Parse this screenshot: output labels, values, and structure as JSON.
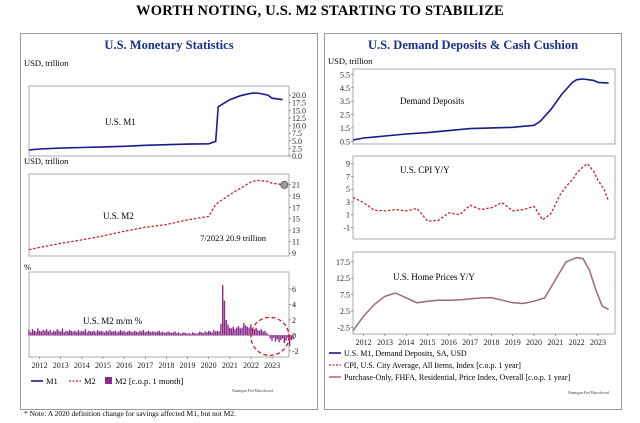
{
  "title": "WORTH NOTING, U.S. M2 STARTING TO STABILIZE",
  "footnote": "* Note: A 2020 definition change for savings affected M1, but not M2.",
  "source_tag": "Bannigan Fed Macroboard",
  "colors": {
    "navy": "#1a1a8c",
    "red": "#c0272d",
    "purple": "#8a2a8a",
    "brown": "#9b6a7a",
    "title_blue": "#1a2f8f"
  },
  "left_panel": {
    "title": "U.S. Monetary Statistics",
    "legend": {
      "m1": "M1",
      "m2": "M2",
      "m2_mom": "M2 [c.o.p. 1 month]"
    }
  },
  "right_panel": {
    "title": "U.S. Demand Deposits & Cash Cushion",
    "legend": [
      "U.S. M1, Demand Deposits, SA, USD",
      "CPI, U.S. City Average, All Items, Index [c.o.p. 1 year]",
      "Purchase-Only, FHFA, Residential, Price Index, Overall [c.o.p. 1 year]"
    ]
  },
  "chart_data": [
    {
      "type": "line",
      "id": "m1",
      "unit_label": "USD, trillion",
      "label": "U.S. M1",
      "x": [
        2011.5,
        2012,
        2013,
        2014,
        2015,
        2016,
        2017,
        2018,
        2019,
        2020.0,
        2020.33,
        2020.45,
        2021.0,
        2021.5,
        2022.0,
        2022.3,
        2022.8,
        2023.0,
        2023.5
      ],
      "values": [
        2.0,
        2.3,
        2.6,
        2.8,
        3.0,
        3.2,
        3.5,
        3.7,
        3.9,
        4.0,
        4.8,
        16.2,
        18.5,
        19.8,
        20.6,
        20.7,
        20.0,
        19.0,
        18.5
      ],
      "ylim": [
        0,
        23
      ],
      "yticks": [
        0.0,
        2.5,
        5.0,
        7.5,
        10.0,
        12.5,
        15.0,
        17.5,
        20.0
      ],
      "ytick_labels": [
        "0.0",
        "2.5",
        "5.0",
        "7.5",
        "10.0",
        "12.5",
        "15.0",
        "17.5",
        "20.0"
      ]
    },
    {
      "type": "line",
      "id": "m2",
      "unit_label": "USD, trillion",
      "label": "U.S. M2",
      "annotation": "7/2023 20.9 trillion",
      "x": [
        2011.5,
        2012,
        2013,
        2014,
        2015,
        2016,
        2017,
        2018,
        2019,
        2020.0,
        2020.33,
        2020.6,
        2021.0,
        2021.5,
        2022.0,
        2022.3,
        2022.8,
        2023.0,
        2023.58
      ],
      "values": [
        9.6,
        10.0,
        10.7,
        11.3,
        12.0,
        12.8,
        13.5,
        14.0,
        14.8,
        15.4,
        17.5,
        18.2,
        19.2,
        20.3,
        21.4,
        21.7,
        21.5,
        21.2,
        20.9
      ],
      "ylim": [
        8.5,
        22.8
      ],
      "yticks": [
        9,
        11,
        13,
        15,
        17,
        19,
        21
      ],
      "ytick_labels": [
        "9",
        "11",
        "13",
        "15",
        "17",
        "19",
        "21"
      ]
    },
    {
      "type": "bar",
      "id": "m2_mom",
      "unit_label": "%",
      "label": "U.S. M2 m/m %",
      "x_start": 2011.5,
      "step": 0.0833,
      "values": [
        0.7,
        0.4,
        0.8,
        0.6,
        0.5,
        0.9,
        0.6,
        0.5,
        0.7,
        0.6,
        0.8,
        0.5,
        0.7,
        0.4,
        0.6,
        0.5,
        0.8,
        0.6,
        0.5,
        0.9,
        0.4,
        0.6,
        0.5,
        0.7,
        0.6,
        0.5,
        0.6,
        0.4,
        0.7,
        0.5,
        0.6,
        0.5,
        0.8,
        0.4,
        0.6,
        0.5,
        0.5,
        0.6,
        0.4,
        0.7,
        0.5,
        0.6,
        0.5,
        0.4,
        0.6,
        0.5,
        0.7,
        0.5,
        0.5,
        0.6,
        0.4,
        0.5,
        0.7,
        0.5,
        0.6,
        0.4,
        0.5,
        0.6,
        0.5,
        0.4,
        0.6,
        0.5,
        0.4,
        0.6,
        0.5,
        0.7,
        0.4,
        0.5,
        0.6,
        0.4,
        0.5,
        0.5,
        0.4,
        0.5,
        0.6,
        0.4,
        0.5,
        0.3,
        0.4,
        0.5,
        0.4,
        0.3,
        0.4,
        0.5,
        0.3,
        0.4,
        0.2,
        0.3,
        0.4,
        0.3,
        0.2,
        0.3,
        0.2,
        0.4,
        0.3,
        0.2,
        0.3,
        0.5,
        0.4,
        0.3,
        0.5,
        0.4,
        0.6,
        0.5,
        0.4,
        0.7,
        0.5,
        0.6,
        0.5,
        1.5,
        6.5,
        4.5,
        2.0,
        1.4,
        1.0,
        0.9,
        1.1,
        0.8,
        1.0,
        1.2,
        0.9,
        1.0,
        1.6,
        1.3,
        1.1,
        1.0,
        1.4,
        0.9,
        0.8,
        1.0,
        0.7,
        0.6,
        0.8,
        0.5,
        0.6,
        0.3,
        0.1,
        -0.4,
        -0.7,
        -0.3,
        -0.8,
        -0.5,
        -0.9,
        -0.6,
        -0.4,
        -1.0,
        -0.7,
        -0.3,
        -1.4,
        -0.6,
        -0.5,
        0.2
      ],
      "ylim": [
        -2.8,
        8.2
      ],
      "yticks": [
        -2,
        0,
        2,
        4,
        6
      ],
      "ytick_labels": [
        "-2",
        "0",
        "2",
        "4",
        "6"
      ],
      "highlight_circle": "2022–2023"
    },
    {
      "type": "line",
      "id": "demand_deposits",
      "unit_label": "USD, trillion",
      "label": "Demand Deposits",
      "x": [
        2011.5,
        2012,
        2013,
        2014,
        2015,
        2016,
        2017,
        2018,
        2019,
        2020.0,
        2020.3,
        2020.8,
        2021.3,
        2021.8,
        2022.0,
        2022.3,
        2022.8,
        2023.0,
        2023.5
      ],
      "values": [
        0.6,
        0.75,
        0.9,
        1.05,
        1.15,
        1.3,
        1.45,
        1.5,
        1.55,
        1.7,
        2.0,
        2.9,
        4.0,
        4.9,
        5.1,
        5.15,
        5.05,
        4.9,
        4.85
      ],
      "ylim": [
        0.3,
        5.9
      ],
      "yticks": [
        0.5,
        1.5,
        2.5,
        3.5,
        4.5,
        5.5
      ],
      "ytick_labels": [
        "0.5",
        "1.5",
        "2.5",
        "3.5",
        "4.5",
        "5.5"
      ]
    },
    {
      "type": "line",
      "id": "cpi",
      "label": "U.S. CPI Y/Y",
      "x": [
        2011.5,
        2012,
        2012.5,
        2013,
        2013.5,
        2014,
        2014.5,
        2015,
        2015.5,
        2016,
        2016.5,
        2017,
        2017.5,
        2018,
        2018.5,
        2019,
        2019.5,
        2020,
        2020.4,
        2020.8,
        2021.2,
        2021.5,
        2021.8,
        2022.0,
        2022.3,
        2022.5,
        2022.8,
        2023.0,
        2023.3,
        2023.5
      ],
      "values": [
        3.7,
        2.9,
        1.7,
        1.6,
        1.8,
        1.6,
        2.0,
        0.0,
        0.1,
        1.3,
        1.0,
        2.5,
        1.8,
        2.1,
        2.9,
        1.6,
        1.8,
        2.3,
        0.2,
        1.2,
        4.0,
        5.4,
        6.5,
        7.5,
        8.5,
        9.0,
        7.8,
        6.4,
        4.9,
        3.1
      ],
      "ylim": [
        -2.8,
        10.2
      ],
      "yticks": [
        -1,
        1,
        3,
        5,
        7,
        9
      ],
      "ytick_labels": [
        "-1",
        "1",
        "3",
        "5",
        "7",
        "9"
      ]
    },
    {
      "type": "line",
      "id": "home_prices",
      "label": "U.S. Home Prices Y/Y",
      "x": [
        2011.5,
        2012,
        2012.5,
        2013,
        2013.5,
        2014,
        2014.5,
        2015,
        2015.5,
        2016,
        2016.5,
        2017,
        2017.5,
        2018,
        2018.5,
        2019,
        2019.5,
        2020,
        2020.5,
        2021,
        2021.5,
        2022,
        2022.3,
        2022.6,
        2022.9,
        2023.2,
        2023.5
      ],
      "values": [
        -3.5,
        1.0,
        4.5,
        7.0,
        8.0,
        6.5,
        5.0,
        5.5,
        5.8,
        5.8,
        5.9,
        6.2,
        6.5,
        6.6,
        5.8,
        5.0,
        4.8,
        5.5,
        6.5,
        12.0,
        17.5,
        18.8,
        18.5,
        15.0,
        9.0,
        4.0,
        3.0
      ],
      "ylim": [
        -4.5,
        20.5
      ],
      "yticks": [
        -2.5,
        2.5,
        7.5,
        12.5,
        17.5
      ],
      "ytick_labels": [
        "-2.5",
        "2.5",
        "7.5",
        "12.5",
        "17.5"
      ]
    }
  ],
  "x_axis": {
    "ticks": [
      2012,
      2013,
      2014,
      2015,
      2016,
      2017,
      2018,
      2019,
      2020,
      2021,
      2022,
      2023
    ],
    "labels": [
      "2012",
      "2013",
      "2014",
      "2015",
      "2016",
      "2017",
      "2018",
      "2019",
      "2020",
      "2021",
      "2022",
      "2023"
    ],
    "range": [
      2011.5,
      2023.8
    ]
  }
}
